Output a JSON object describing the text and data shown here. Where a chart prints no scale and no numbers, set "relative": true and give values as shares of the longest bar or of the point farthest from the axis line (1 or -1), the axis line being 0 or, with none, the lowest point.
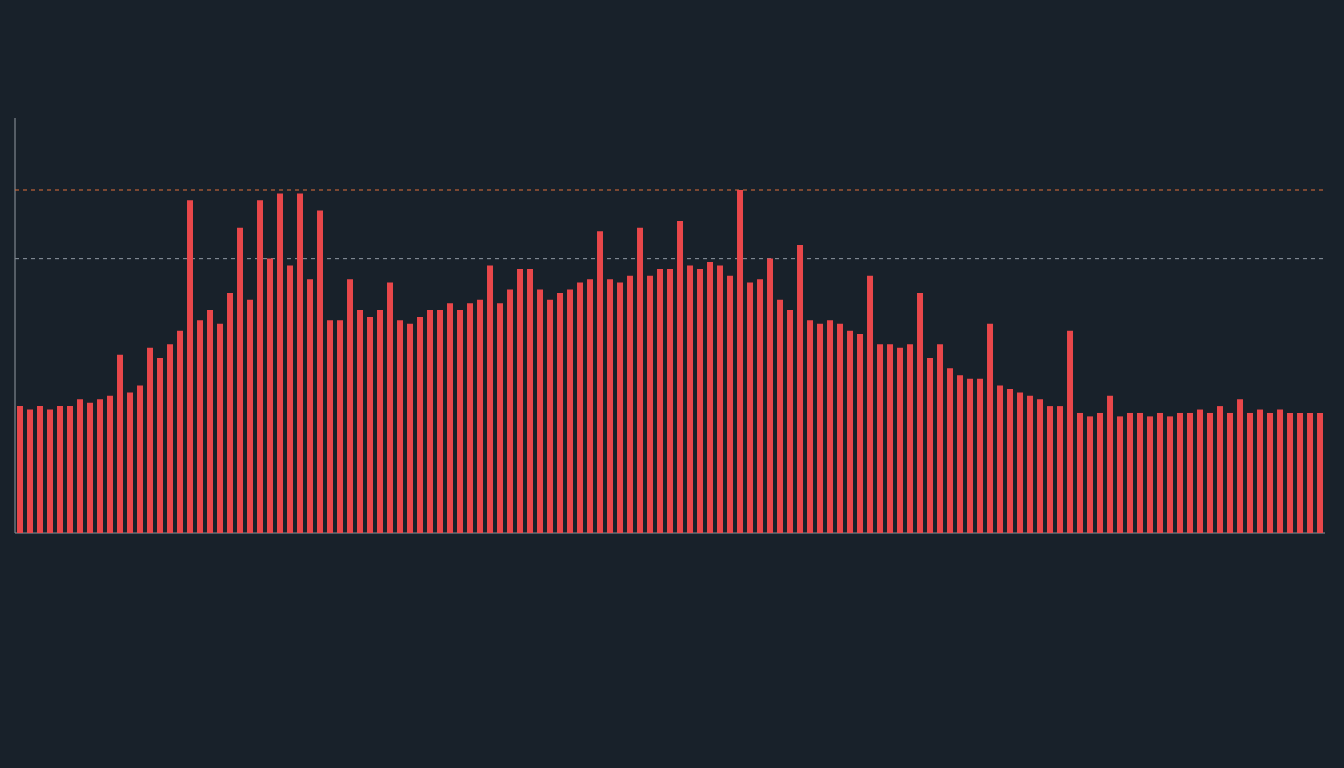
{
  "chart_data": {
    "type": "bar",
    "relative": true,
    "color": "#e8474a",
    "categories": [
      null,
      null,
      null,
      null,
      null,
      null,
      null,
      null,
      null,
      null,
      null,
      null,
      null,
      null,
      null,
      null,
      null,
      null,
      null,
      null,
      null,
      null,
      null,
      null,
      null,
      null,
      null,
      null,
      null,
      null,
      null,
      null,
      null,
      null,
      null,
      null,
      null,
      null,
      null,
      null,
      null,
      null,
      null,
      null,
      null,
      null,
      null,
      null,
      null,
      null,
      null,
      null,
      null,
      null,
      null,
      null,
      null,
      null,
      null,
      null,
      null,
      null,
      null,
      null,
      null,
      null,
      null,
      null,
      null,
      null,
      null,
      null,
      null,
      null,
      null,
      null,
      null,
      null,
      null,
      null,
      null,
      null,
      null,
      null,
      null,
      null,
      null,
      null,
      null,
      null,
      null,
      null,
      null,
      null,
      null,
      null,
      null,
      null,
      null,
      null,
      null,
      null,
      null,
      null,
      null,
      null,
      null,
      null,
      null,
      null,
      null,
      null,
      null,
      null,
      null,
      null,
      null,
      null,
      null,
      null,
      null,
      null,
      null,
      null,
      null,
      null,
      null,
      null,
      null,
      null,
      null
    ],
    "values": [
      0.37,
      0.36,
      0.37,
      0.36,
      0.37,
      0.37,
      0.39,
      0.38,
      0.39,
      0.4,
      0.52,
      0.41,
      0.43,
      0.54,
      0.51,
      0.55,
      0.59,
      0.97,
      0.62,
      0.65,
      0.61,
      0.7,
      0.89,
      0.68,
      0.97,
      0.8,
      0.99,
      0.78,
      0.99,
      0.74,
      0.94,
      0.62,
      0.62,
      0.74,
      0.65,
      0.63,
      0.65,
      0.73,
      0.62,
      0.61,
      0.63,
      0.65,
      0.65,
      0.67,
      0.65,
      0.67,
      0.68,
      0.78,
      0.67,
      0.71,
      0.77,
      0.77,
      0.71,
      0.68,
      0.7,
      0.71,
      0.73,
      0.74,
      0.88,
      0.74,
      0.73,
      0.75,
      0.89,
      0.75,
      0.77,
      0.77,
      0.91,
      0.78,
      0.77,
      0.79,
      0.78,
      0.75,
      1.0,
      0.73,
      0.74,
      0.8,
      0.68,
      0.65,
      0.84,
      0.62,
      0.61,
      0.62,
      0.61,
      0.59,
      0.58,
      0.75,
      0.55,
      0.55,
      0.54,
      0.55,
      0.7,
      0.51,
      0.55,
      0.48,
      0.46,
      0.45,
      0.45,
      0.61,
      0.43,
      0.42,
      0.41,
      0.4,
      0.39,
      0.37,
      0.37,
      0.59,
      0.35,
      0.34,
      0.35,
      0.4,
      0.34,
      0.35,
      0.35,
      0.34,
      0.35,
      0.34,
      0.35,
      0.35,
      0.36,
      0.35,
      0.37,
      0.35,
      0.39,
      0.35,
      0.36,
      0.35,
      0.36,
      0.35,
      0.35,
      0.35,
      0.35
    ],
    "ref_lines": [
      {
        "axis": "y",
        "value": 1.0,
        "color": "#e0703a",
        "line_style": "dashed"
      },
      {
        "axis": "y",
        "value": 0.8,
        "color": "#7d8690",
        "line_style": "dashed"
      }
    ]
  }
}
